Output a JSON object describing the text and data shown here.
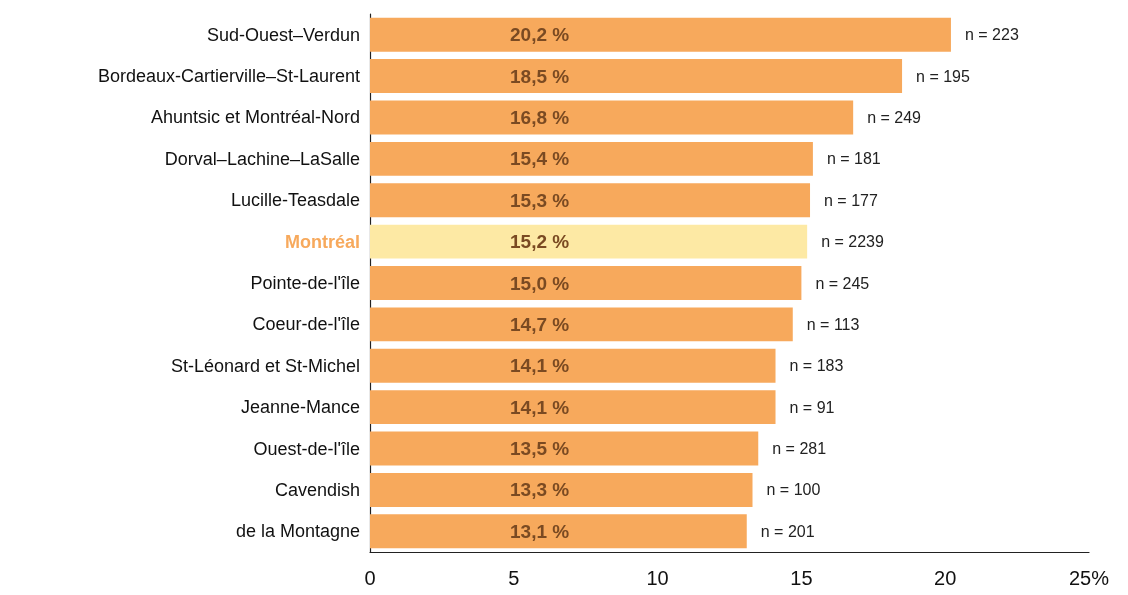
{
  "chart_data": {
    "type": "bar",
    "orientation": "horizontal",
    "categories": [
      "Sud-Ouest–Verdun",
      "Bordeaux-Cartierville–St-Laurent",
      "Ahuntsic et Montréal-Nord",
      "Dorval–Lachine–LaSalle",
      "Lucille-Teasdale",
      "Montréal",
      "Pointe-de-l'île",
      "Coeur-de-l'île",
      "St-Léonard et St-Michel",
      "Jeanne-Mance",
      "Ouest-de-l'île",
      "Cavendish",
      "de la Montagne"
    ],
    "values": [
      20.2,
      18.5,
      16.8,
      15.4,
      15.3,
      15.2,
      15.0,
      14.7,
      14.1,
      14.1,
      13.5,
      13.3,
      13.1
    ],
    "value_labels": [
      "20,2 %",
      "18,5 %",
      "16,8 %",
      "15,4 %",
      "15,3 %",
      "15,2 %",
      "15,0 %",
      "14,7 %",
      "14,1 %",
      "14,1 %",
      "13,5 %",
      "13,3 %",
      "13,1 %"
    ],
    "colors": [
      "#f7a95c",
      "#f7a95c",
      "#f7a95c",
      "#f7a95c",
      "#f7a95c",
      "#fde9a4",
      "#f7a95c",
      "#f7a95c",
      "#f7a95c",
      "#f7a95c",
      "#f7a95c",
      "#f7a95c",
      "#f7a95c"
    ],
    "xlim": [
      0,
      25
    ],
    "xticks": [
      0,
      5,
      10,
      15,
      20,
      {
        "value": 25,
        "label": "25%"
      }
    ],
    "grid": false,
    "annotations": [
      {
        "text": "n = 223",
        "x": 20.2,
        "y": "Sud-Ouest–Verdun"
      },
      {
        "text": "n = 195",
        "x": 18.5,
        "y": "Bordeaux-Cartierville–St-Laurent"
      },
      {
        "text": "n = 249",
        "x": 16.8,
        "y": "Ahuntsic et Montréal-Nord"
      },
      {
        "text": "n = 181",
        "x": 15.4,
        "y": "Dorval–Lachine–LaSalle"
      },
      {
        "text": "n = 177",
        "x": 15.3,
        "y": "Lucille-Teasdale"
      },
      {
        "text": "n = 2239",
        "x": 15.2,
        "y": "Montréal"
      },
      {
        "text": "n = 245",
        "x": 15.0,
        "y": "Pointe-de-l'île"
      },
      {
        "text": "n = 113",
        "x": 14.7,
        "y": "Coeur-de-l'île"
      },
      {
        "text": "n = 183",
        "x": 14.1,
        "y": "St-Léonard et St-Michel"
      },
      {
        "text": "n = 91",
        "x": 14.1,
        "y": "Jeanne-Mance"
      },
      {
        "text": "n = 281",
        "x": 13.5,
        "y": "Ouest-de-l'île"
      },
      {
        "text": "n = 100",
        "x": 13.3,
        "y": "Cavendish"
      },
      {
        "text": "n = 201",
        "x": 13.1,
        "y": "de la Montagne"
      }
    ]
  }
}
